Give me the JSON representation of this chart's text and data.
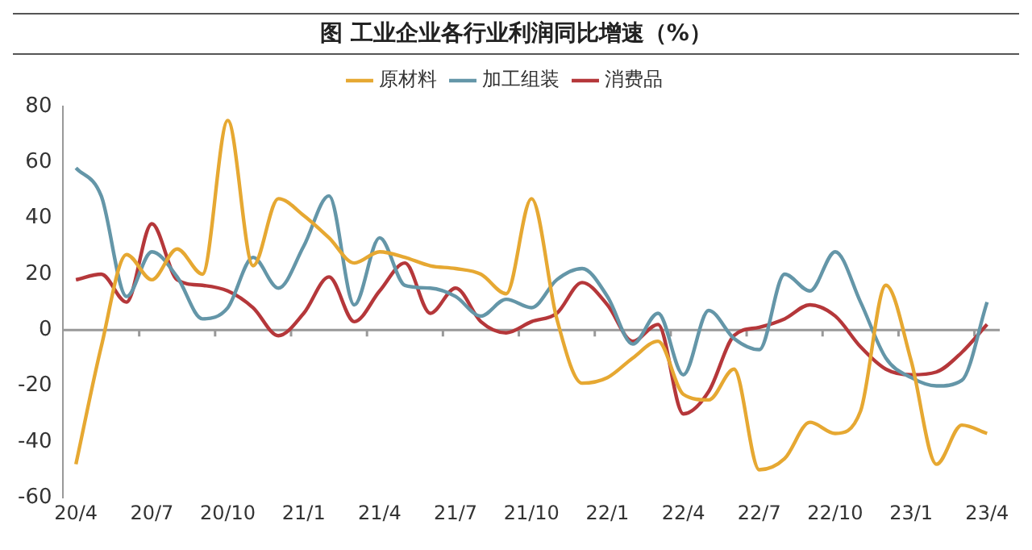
{
  "chart_data": {
    "type": "line",
    "title": "图  工业企业各行业利润同比增速（%）",
    "categories": [
      "20/4",
      null,
      null,
      "20/7",
      null,
      null,
      "20/10",
      null,
      null,
      "21/1",
      null,
      null,
      "21/4",
      null,
      null,
      "21/7",
      null,
      null,
      "21/10",
      null,
      null,
      "22/1",
      null,
      null,
      "22/4",
      null,
      null,
      "22/7",
      null,
      null,
      "22/10",
      null,
      null,
      "23/1",
      null,
      null,
      "23/4"
    ],
    "series": [
      {
        "name": "原材料",
        "color": "#e6a832",
        "values": [
          -48,
          -6,
          27,
          18,
          29,
          20,
          75,
          23,
          47,
          41,
          33,
          24,
          28,
          26,
          23,
          22,
          20,
          13,
          47,
          4,
          -19,
          -17,
          -10,
          -4,
          -23,
          -25,
          -14,
          -50,
          -46,
          -33,
          -37,
          -29,
          16,
          -11,
          -48,
          -34,
          -37
        ]
      },
      {
        "name": "加工组装",
        "color": "#6496a8",
        "values": [
          58,
          48,
          12,
          28,
          19,
          4,
          8,
          26,
          15,
          30,
          48,
          9,
          33,
          16,
          15,
          12,
          5,
          11,
          8,
          18,
          22,
          12,
          -5,
          6,
          -16,
          7,
          -3,
          -7,
          20,
          14,
          28,
          10,
          -10,
          -17,
          -20,
          -18,
          10
        ]
      },
      {
        "name": "消费品",
        "color": "#b5373a",
        "values": [
          18,
          20,
          10,
          38,
          18,
          16,
          14,
          8,
          -2,
          6,
          19,
          3,
          14,
          24,
          6,
          15,
          3,
          -1,
          3,
          6,
          17,
          9,
          -4,
          2,
          -30,
          -22,
          -2,
          1,
          4,
          9,
          5,
          -6,
          -14,
          -16,
          -15,
          -8,
          2
        ]
      }
    ],
    "ylim": [
      -60,
      80
    ],
    "yticks": [
      -60,
      -40,
      -20,
      0,
      20,
      40,
      60,
      80
    ],
    "grid": false,
    "ref_lines": [
      {
        "axis": "y",
        "value": 0,
        "color": "#999999"
      }
    ],
    "legend": "top",
    "marker": "none",
    "line_style": "solid"
  }
}
